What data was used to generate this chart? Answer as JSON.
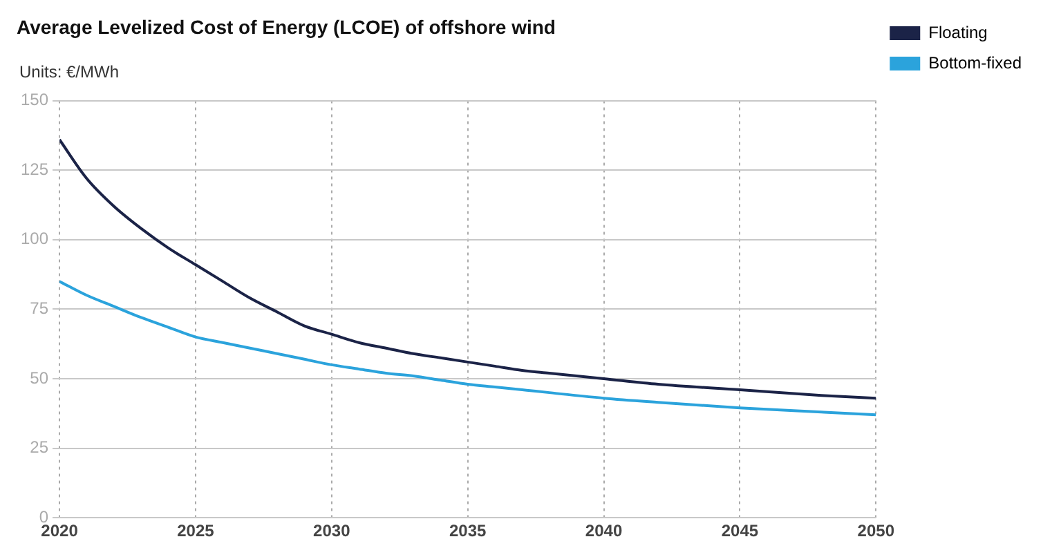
{
  "chart_data": {
    "type": "line",
    "title": "Average Levelized Cost of Energy (LCOE) of offshore wind",
    "ylabel": "Units: €/MWh",
    "x": [
      2020,
      2021,
      2022,
      2023,
      2024,
      2025,
      2026,
      2027,
      2028,
      2029,
      2030,
      2031,
      2032,
      2033,
      2034,
      2035,
      2036,
      2037,
      2038,
      2040,
      2042,
      2045,
      2048,
      2050
    ],
    "series": [
      {
        "name": "Floating",
        "color": "#1b2347",
        "values": [
          136,
          122,
          112,
          104,
          97,
          91,
          85,
          79,
          74,
          69,
          66,
          63,
          61,
          59,
          57.5,
          56,
          54.5,
          53,
          52,
          50,
          48,
          46,
          44,
          43
        ]
      },
      {
        "name": "Bottom-fixed",
        "color": "#2ba3dc",
        "values": [
          85,
          80,
          76,
          72,
          68.5,
          65,
          63,
          61,
          59,
          57,
          55,
          53.5,
          52,
          51,
          49.5,
          48,
          47,
          46,
          45,
          43,
          41.5,
          39.5,
          38,
          37
        ]
      }
    ],
    "xlim": [
      2020,
      2050
    ],
    "xticks": [
      2020,
      2025,
      2030,
      2035,
      2040,
      2045,
      2050
    ],
    "ylim": [
      0,
      150
    ],
    "yticks": [
      0,
      25,
      50,
      75,
      100,
      125,
      150
    ],
    "grid": true,
    "legend": "top right",
    "marker": "none",
    "line_style": "solid"
  }
}
